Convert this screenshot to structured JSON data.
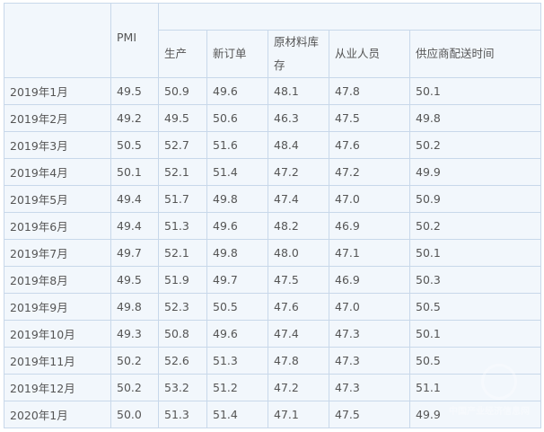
{
  "table": {
    "headers": {
      "pmi": "PMI",
      "sub": [
        "生产",
        "新订单",
        "原材料库存",
        "从业人员",
        "供应商配送时间"
      ]
    },
    "rows": [
      [
        "2019年1月",
        "49.5",
        "50.9",
        "49.6",
        "48.1",
        "47.8",
        "50.1"
      ],
      [
        "2019年2月",
        "49.2",
        "49.5",
        "50.6",
        "46.3",
        "47.5",
        "49.8"
      ],
      [
        "2019年3月",
        "50.5",
        "52.7",
        "51.6",
        "48.4",
        "47.6",
        "50.2"
      ],
      [
        "2019年4月",
        "50.1",
        "52.1",
        "51.4",
        "47.2",
        "47.2",
        "49.9"
      ],
      [
        "2019年5月",
        "49.4",
        "51.7",
        "49.8",
        "47.4",
        "47.0",
        "50.9"
      ],
      [
        "2019年6月",
        "49.4",
        "51.3",
        "49.6",
        "48.2",
        "46.9",
        "50.2"
      ],
      [
        "2019年7月",
        "49.7",
        "52.1",
        "49.8",
        "48.0",
        "47.1",
        "50.1"
      ],
      [
        "2019年8月",
        "49.5",
        "51.9",
        "49.7",
        "47.5",
        "46.9",
        "50.3"
      ],
      [
        "2019年9月",
        "49.8",
        "52.3",
        "50.5",
        "47.6",
        "47.0",
        "50.5"
      ],
      [
        "2019年10月",
        "49.3",
        "50.8",
        "49.6",
        "47.4",
        "47.3",
        "50.1"
      ],
      [
        "2019年11月",
        "50.2",
        "52.6",
        "51.3",
        "47.8",
        "47.3",
        "50.5"
      ],
      [
        "2019年12月",
        "50.2",
        "53.2",
        "51.2",
        "47.2",
        "47.3",
        "51.1"
      ],
      [
        "2020年1月",
        "50.0",
        "51.3",
        "51.4",
        "47.1",
        "47.5",
        "49.9"
      ]
    ]
  },
  "watermark": "中国产业经济信息网",
  "colors": {
    "background": "#f2f7fc",
    "border": "#c8d8ea",
    "text": "#555555"
  }
}
